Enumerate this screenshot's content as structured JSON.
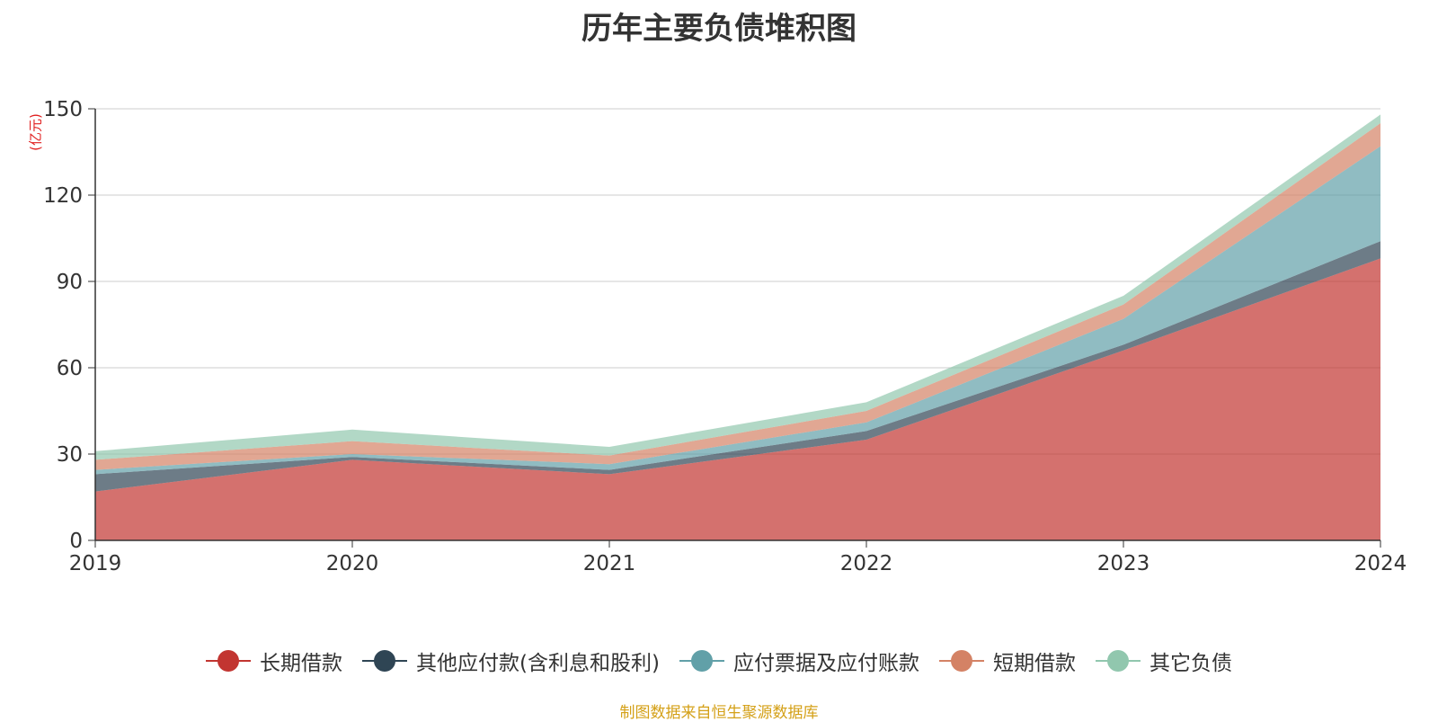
{
  "chart_data": {
    "type": "area",
    "stacked": true,
    "title": "历年主要负债堆积图",
    "unit_label": "(亿元)",
    "x": [
      "2019",
      "2020",
      "2021",
      "2022",
      "2023",
      "2024"
    ],
    "ylim": [
      0,
      150
    ],
    "yticks": [
      "0",
      "30",
      "60",
      "90",
      "120",
      "150"
    ],
    "grid": true,
    "legend_position": "bottom",
    "series": [
      {
        "name": "长期借款",
        "color": "#c23531",
        "values": [
          17,
          28,
          23,
          35,
          66,
          98
        ]
      },
      {
        "name": "其他应付款(含利息和股利)",
        "color": "#2f4554",
        "values": [
          6,
          1,
          1.5,
          3,
          2,
          6
        ]
      },
      {
        "name": "应付票据及应付账款",
        "color": "#61a0a8",
        "values": [
          1.5,
          1,
          2,
          3,
          9,
          33
        ]
      },
      {
        "name": "短期借款",
        "color": "#d48265",
        "values": [
          3.5,
          4.5,
          3,
          4,
          5,
          8
        ]
      },
      {
        "name": "其它负债",
        "color": "#91c7ae",
        "values": [
          3,
          4,
          3,
          3,
          3,
          3
        ]
      }
    ]
  },
  "footer": {
    "source": "制图数据来自恒生聚源数据库"
  }
}
